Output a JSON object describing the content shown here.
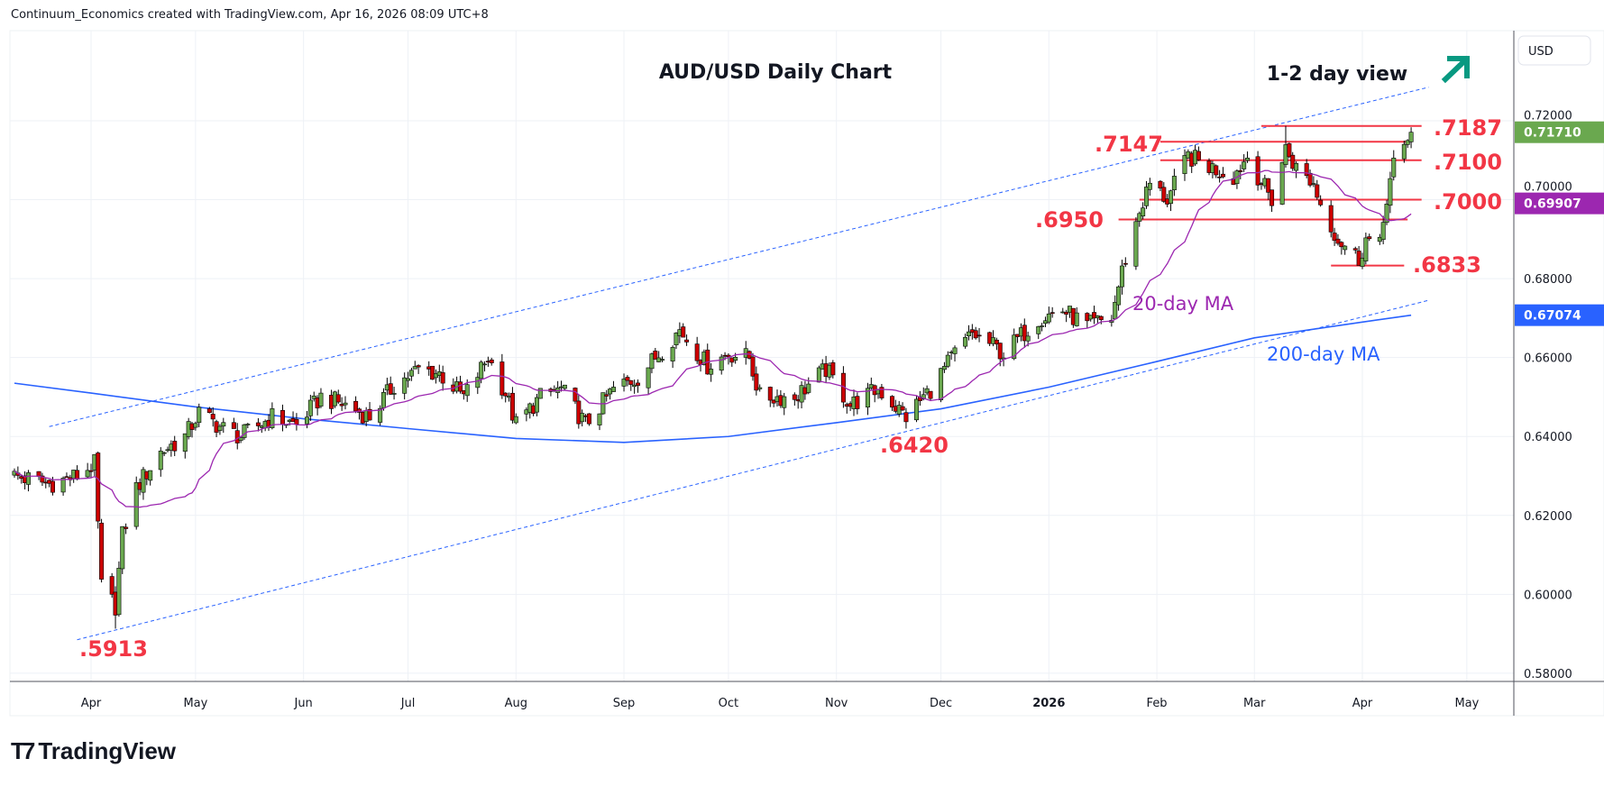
{
  "header": "Continuum_Economics created with TradingView.com, Apr 16, 2026 08:09 UTC+8",
  "logo_text": "TradingView",
  "chart_data": {
    "type": "candlestick",
    "title": "AUD/USD Daily Chart",
    "view_label": "1-2 day view",
    "view_direction": "up",
    "currency": "USD",
    "ylim": [
      0.575,
      0.7345
    ],
    "y_ticks": [
      "0.72000",
      "0.70000",
      "0.68000",
      "0.66000",
      "0.64000",
      "0.62000",
      "0.60000",
      "0.58000"
    ],
    "y_tick_values": [
      0.72,
      0.7,
      0.68,
      0.66,
      0.64,
      0.62,
      0.6,
      0.58
    ],
    "x_ticks": [
      {
        "label": "Apr",
        "date": "2025-04-01"
      },
      {
        "label": "May",
        "date": "2025-05-01"
      },
      {
        "label": "Jun",
        "date": "2025-06-01"
      },
      {
        "label": "Jul",
        "date": "2025-07-01"
      },
      {
        "label": "Aug",
        "date": "2025-08-01"
      },
      {
        "label": "Sep",
        "date": "2025-09-01"
      },
      {
        "label": "Oct",
        "date": "2025-10-01"
      },
      {
        "label": "Nov",
        "date": "2025-11-01"
      },
      {
        "label": "Dec",
        "date": "2025-12-01"
      },
      {
        "label": "2026",
        "date": "2026-01-01"
      },
      {
        "label": "Feb",
        "date": "2026-02-01"
      },
      {
        "label": "Mar",
        "date": "2026-03-01"
      },
      {
        "label": "Apr",
        "date": "2026-04-01"
      },
      {
        "label": "May",
        "date": "2026-05-01"
      }
    ],
    "close_path": [
      [
        "2025-03-10",
        0.63
      ],
      [
        "2025-03-20",
        0.628
      ],
      [
        "2025-03-28",
        0.63
      ],
      [
        "2025-04-02",
        0.633
      ],
      [
        "2025-04-04",
        0.602
      ],
      [
        "2025-04-08",
        0.597
      ],
      [
        "2025-04-10",
        0.615
      ],
      [
        "2025-04-14",
        0.627
      ],
      [
        "2025-04-21",
        0.636
      ],
      [
        "2025-04-28",
        0.64
      ],
      [
        "2025-05-02",
        0.646
      ],
      [
        "2025-05-09",
        0.642
      ],
      [
        "2025-05-14",
        0.64
      ],
      [
        "2025-05-23",
        0.645
      ],
      [
        "2025-05-30",
        0.643
      ],
      [
        "2025-06-06",
        0.65
      ],
      [
        "2025-06-13",
        0.648
      ],
      [
        "2025-06-20",
        0.645
      ],
      [
        "2025-06-27",
        0.653
      ],
      [
        "2025-07-04",
        0.657
      ],
      [
        "2025-07-10",
        0.656
      ],
      [
        "2025-07-17",
        0.65
      ],
      [
        "2025-07-24",
        0.66
      ],
      [
        "2025-07-29",
        0.651
      ],
      [
        "2025-08-01",
        0.643
      ],
      [
        "2025-08-08",
        0.65
      ],
      [
        "2025-08-14",
        0.652
      ],
      [
        "2025-08-21",
        0.643
      ],
      [
        "2025-08-29",
        0.652
      ],
      [
        "2025-09-05",
        0.655
      ],
      [
        "2025-09-12",
        0.662
      ],
      [
        "2025-09-17",
        0.667
      ],
      [
        "2025-09-25",
        0.658
      ],
      [
        "2025-10-01",
        0.661
      ],
      [
        "2025-10-07",
        0.66
      ],
      [
        "2025-10-10",
        0.65
      ],
      [
        "2025-10-20",
        0.65
      ],
      [
        "2025-10-29",
        0.657
      ],
      [
        "2025-11-05",
        0.648
      ],
      [
        "2025-11-13",
        0.652
      ],
      [
        "2025-11-21",
        0.645
      ],
      [
        "2025-11-28",
        0.652
      ],
      [
        "2025-12-05",
        0.661
      ],
      [
        "2025-12-10",
        0.666
      ],
      [
        "2025-12-16",
        0.663
      ],
      [
        "2025-12-19",
        0.661
      ],
      [
        "2025-12-29",
        0.67
      ],
      [
        "2026-01-05",
        0.672
      ],
      [
        "2026-01-12",
        0.668
      ],
      [
        "2026-01-19",
        0.67
      ],
      [
        "2026-01-22",
        0.682
      ],
      [
        "2026-01-27",
        0.697
      ],
      [
        "2026-01-30",
        0.704
      ],
      [
        "2026-02-04",
        0.7
      ],
      [
        "2026-02-10",
        0.711
      ],
      [
        "2026-02-17",
        0.708
      ],
      [
        "2026-02-23",
        0.706
      ],
      [
        "2026-02-27",
        0.711
      ],
      [
        "2026-03-04",
        0.703
      ],
      [
        "2026-03-06",
        0.7
      ],
      [
        "2026-03-10",
        0.713
      ],
      [
        "2026-03-13",
        0.708
      ],
      [
        "2026-03-18",
        0.704
      ],
      [
        "2026-03-20",
        0.699
      ],
      [
        "2026-03-25",
        0.69
      ],
      [
        "2026-03-31",
        0.685
      ],
      [
        "2026-04-02",
        0.69
      ],
      [
        "2026-04-06",
        0.688
      ],
      [
        "2026-04-08",
        0.701
      ],
      [
        "2026-04-10",
        0.709
      ],
      [
        "2026-04-13",
        0.712
      ],
      [
        "2026-04-15",
        0.7171
      ]
    ],
    "special_lows": [
      [
        "2025-04-08",
        0.5913
      ],
      [
        "2025-11-21",
        0.642
      ],
      [
        "2026-03-31",
        0.6833
      ]
    ],
    "special_highs": [
      [
        "2026-03-10",
        0.7187
      ]
    ],
    "ma200_path": [
      [
        "2025-03-10",
        0.6535
      ],
      [
        "2025-04-01",
        0.651
      ],
      [
        "2025-05-01",
        0.6475
      ],
      [
        "2025-06-01",
        0.6445
      ],
      [
        "2025-07-01",
        0.642
      ],
      [
        "2025-08-01",
        0.6395
      ],
      [
        "2025-09-01",
        0.6385
      ],
      [
        "2025-10-01",
        0.64
      ],
      [
        "2025-11-01",
        0.6435
      ],
      [
        "2025-12-01",
        0.647
      ],
      [
        "2026-01-01",
        0.6525
      ],
      [
        "2026-02-01",
        0.659
      ],
      [
        "2026-03-01",
        0.665
      ],
      [
        "2026-04-01",
        0.669
      ],
      [
        "2026-04-15",
        0.67074
      ]
    ],
    "channel_upper": [
      [
        "2025-03-20",
        0.6425
      ],
      [
        "2026-04-20",
        0.7285
      ]
    ],
    "channel_lower": [
      [
        "2025-03-28",
        0.5885
      ],
      [
        "2026-04-20",
        0.6745
      ]
    ],
    "levels": [
      {
        "value": 0.7187,
        "label": ".7187",
        "from": "2026-03-03",
        "to": "2026-04-18"
      },
      {
        "value": 0.7147,
        "label": ".7147",
        "from": "2026-02-02",
        "to": "2026-04-14"
      },
      {
        "value": 0.71,
        "label": ".7100",
        "from": "2026-02-02",
        "to": "2026-04-18"
      },
      {
        "value": 0.7,
        "label": ".7000",
        "from": "2026-01-27",
        "to": "2026-04-18"
      },
      {
        "value": 0.695,
        "label": ".6950",
        "from": "2026-01-21",
        "to": "2026-04-14"
      },
      {
        "value": 0.6833,
        "label": ".6833",
        "from": "2026-03-23",
        "to": "2026-04-13"
      }
    ],
    "annotations": {
      "low_2025_nov": ".6420",
      "low_2025_apr": ".5913",
      "ma20_label": "20-day MA",
      "ma200_label": "200-day MA"
    },
    "last_price": {
      "close": "0.71710",
      "ma20": "0.69907",
      "ma200": "0.67074"
    },
    "colors": {
      "up": "#6aa84f",
      "down": "#cc0000",
      "level": "#f23645",
      "ma20": "#9c27b0",
      "ma200": "#2962ff",
      "channel": "#2962ff",
      "arrow": "#089981"
    }
  }
}
